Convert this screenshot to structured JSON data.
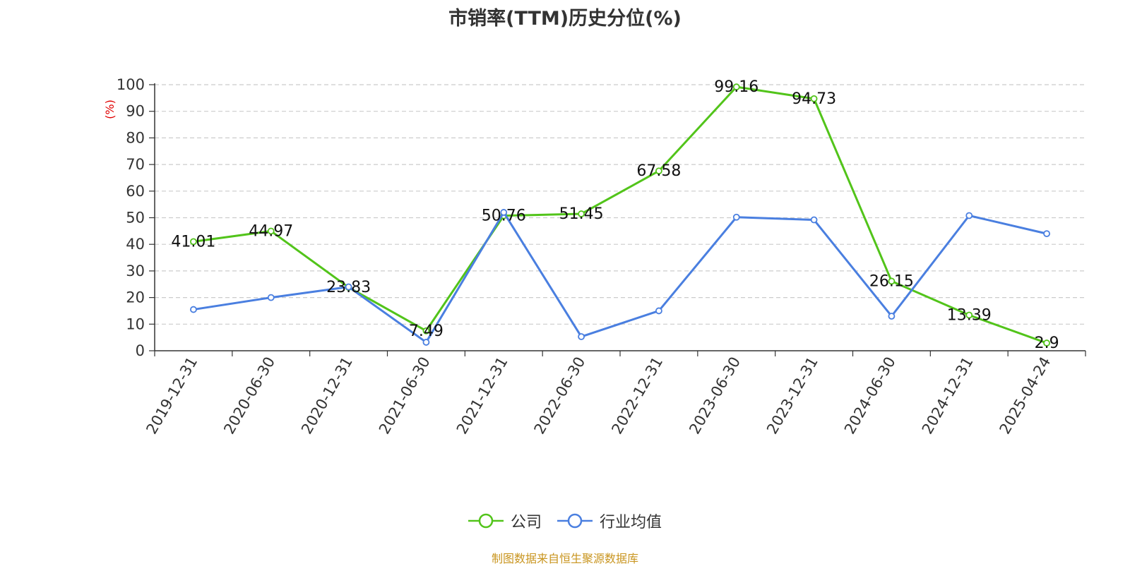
{
  "title": "市销率(TTM)历史分位(%)",
  "source": "制图数据来自恒生聚源数据库",
  "colors": {
    "company": "#52c41a",
    "industry": "#4a7fe0",
    "source": "#c9951f",
    "yunit": "#e00000"
  },
  "chart_data": {
    "type": "line",
    "title": "市销率(TTM)历史分位(%)",
    "ylabel": "(%)",
    "xlabel": "",
    "ylim": [
      0,
      100
    ],
    "yticks": [
      0,
      10,
      20,
      30,
      40,
      50,
      60,
      70,
      80,
      90,
      100
    ],
    "grid": true,
    "legend_position": "bottom",
    "categories": [
      "2019-12-31",
      "2020-06-30",
      "2020-12-31",
      "2021-06-30",
      "2021-12-31",
      "2022-06-30",
      "2022-12-31",
      "2023-06-30",
      "2023-12-31",
      "2024-06-30",
      "2024-12-31",
      "2025-04-24"
    ],
    "series": [
      {
        "name": "公司",
        "values": [
          41.01,
          44.97,
          23.83,
          7.49,
          50.76,
          51.45,
          67.58,
          99.16,
          94.73,
          26.15,
          13.39,
          2.9
        ],
        "labels": [
          "41.01",
          "44.97",
          "23.83",
          "7.49",
          "50.76",
          "51.45",
          "67.58",
          "99.16",
          "94.73",
          "26.15",
          "13.39",
          "2.9"
        ]
      },
      {
        "name": "行业均值",
        "values": [
          15.5,
          20.0,
          24.0,
          3.2,
          52.0,
          5.3,
          15.0,
          50.2,
          49.2,
          13.0,
          50.8,
          44.0
        ]
      }
    ]
  }
}
